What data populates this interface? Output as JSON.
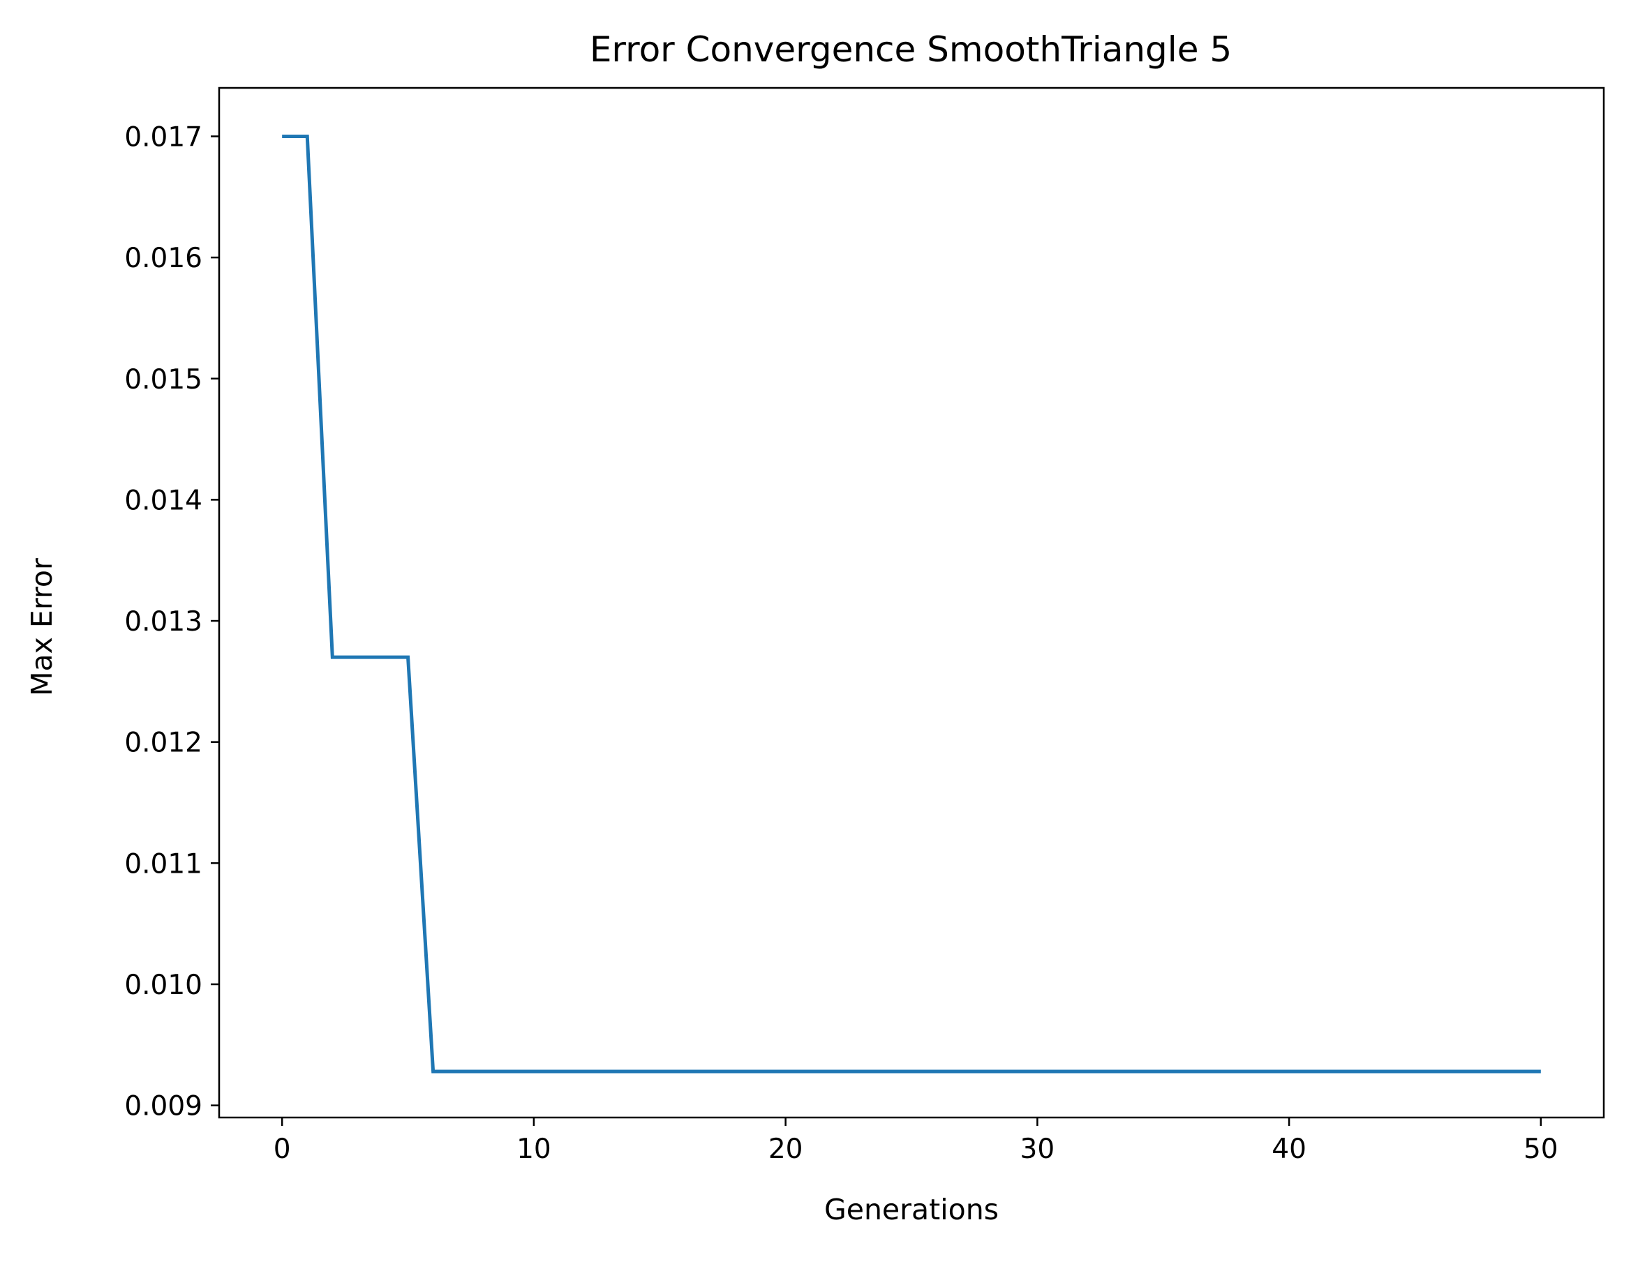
{
  "chart_data": {
    "type": "line",
    "title": "Error Convergence SmoothTriangle 5",
    "xlabel": "Generations",
    "ylabel": "Max Error",
    "xlim": [
      -2.5,
      52.5
    ],
    "ylim": [
      0.0089,
      0.0174
    ],
    "xticks": [
      0,
      10,
      20,
      30,
      40,
      50
    ],
    "xtick_labels": [
      "0",
      "10",
      "20",
      "30",
      "40",
      "50"
    ],
    "yticks": [
      0.009,
      0.01,
      0.011,
      0.012,
      0.013,
      0.014,
      0.015,
      0.016,
      0.017
    ],
    "ytick_labels": [
      "0.009",
      "0.010",
      "0.011",
      "0.012",
      "0.013",
      "0.014",
      "0.015",
      "0.016",
      "0.017"
    ],
    "grid": false,
    "series": [
      {
        "color": "#1f77b4",
        "x": [
          0,
          1,
          2,
          3,
          4,
          5,
          6,
          7,
          8,
          9,
          10,
          11,
          12,
          13,
          14,
          15,
          16,
          17,
          18,
          19,
          20,
          21,
          22,
          23,
          24,
          25,
          26,
          27,
          28,
          29,
          30,
          31,
          32,
          33,
          34,
          35,
          36,
          37,
          38,
          39,
          40,
          41,
          42,
          43,
          44,
          45,
          46,
          47,
          48,
          49,
          50
        ],
        "y": [
          0.017,
          0.017,
          0.0127,
          0.0127,
          0.0127,
          0.0127,
          0.00928,
          0.00928,
          0.00928,
          0.00928,
          0.00928,
          0.00928,
          0.00928,
          0.00928,
          0.00928,
          0.00928,
          0.00928,
          0.00928,
          0.00928,
          0.00928,
          0.00928,
          0.00928,
          0.00928,
          0.00928,
          0.00928,
          0.00928,
          0.00928,
          0.00928,
          0.00928,
          0.00928,
          0.00928,
          0.00928,
          0.00928,
          0.00928,
          0.00928,
          0.00928,
          0.00928,
          0.00928,
          0.00928,
          0.00928,
          0.00928,
          0.00928,
          0.00928,
          0.00928,
          0.00928,
          0.00928,
          0.00928,
          0.00928,
          0.00928,
          0.00928,
          0.00928
        ]
      }
    ]
  }
}
